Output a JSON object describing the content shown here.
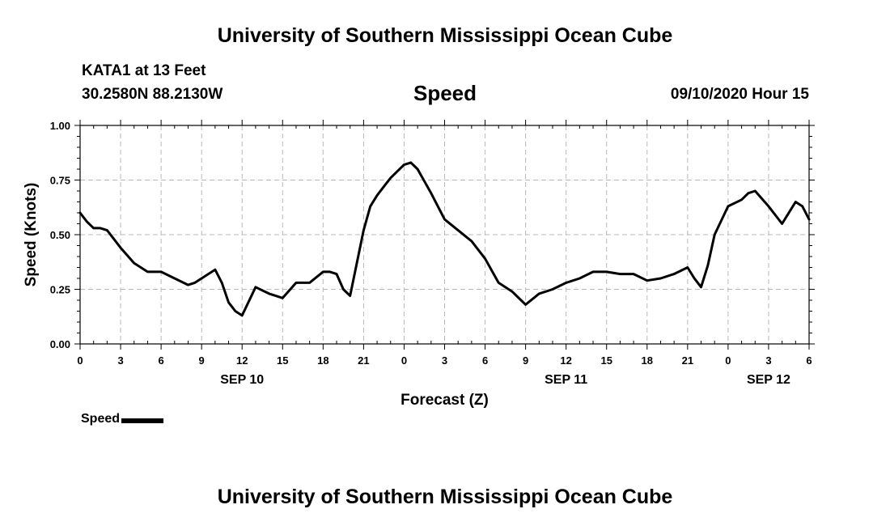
{
  "header": {
    "title": "University of Southern Mississippi Ocean Cube",
    "station": "KATA1 at 13 Feet",
    "coords": "30.2580N 88.2130W",
    "variable": "Speed",
    "timestamp": "09/10/2020 Hour 15"
  },
  "footer": {
    "title": "University of Southern Mississippi Ocean Cube"
  },
  "legend": {
    "label": "Speed"
  },
  "colors": {
    "line": "#000000",
    "grid": "#b8b8b8"
  },
  "chart_data": {
    "type": "line",
    "title": "Speed",
    "xlabel": "Forecast (Z)",
    "ylabel": "Speed (Knots)",
    "xlim": [
      0,
      54
    ],
    "ylim": [
      0,
      1
    ],
    "yticks": [
      {
        "v": 0,
        "label": "0.00"
      },
      {
        "v": 0.25,
        "label": "0.25"
      },
      {
        "v": 0.5,
        "label": "0.50"
      },
      {
        "v": 0.75,
        "label": "0.75"
      },
      {
        "v": 1,
        "label": "1.00"
      }
    ],
    "xticks": [
      {
        "v": 0,
        "label": "0"
      },
      {
        "v": 3,
        "label": "3"
      },
      {
        "v": 6,
        "label": "6"
      },
      {
        "v": 9,
        "label": "9"
      },
      {
        "v": 12,
        "label": "12"
      },
      {
        "v": 15,
        "label": "15"
      },
      {
        "v": 18,
        "label": "18"
      },
      {
        "v": 21,
        "label": "21"
      },
      {
        "v": 24,
        "label": "0"
      },
      {
        "v": 27,
        "label": "3"
      },
      {
        "v": 30,
        "label": "6"
      },
      {
        "v": 33,
        "label": "9"
      },
      {
        "v": 36,
        "label": "12"
      },
      {
        "v": 39,
        "label": "15"
      },
      {
        "v": 42,
        "label": "18"
      },
      {
        "v": 45,
        "label": "21"
      },
      {
        "v": 48,
        "label": "0"
      },
      {
        "v": 51,
        "label": "3"
      },
      {
        "v": 54,
        "label": "6"
      }
    ],
    "date_labels": [
      {
        "v": 12,
        "label": "SEP 10"
      },
      {
        "v": 36,
        "label": "SEP 11"
      },
      {
        "v": 51,
        "label": "SEP 12"
      }
    ],
    "grid": true,
    "series": [
      {
        "name": "Speed",
        "x": [
          0,
          0.5,
          1,
          1.5,
          2,
          3,
          4,
          4.5,
          5,
          5.5,
          6,
          7,
          8,
          8.5,
          9,
          10,
          10.5,
          11,
          11.5,
          12,
          13,
          14,
          14.5,
          15,
          16,
          17,
          18,
          18.5,
          19,
          19.5,
          20,
          21,
          21.5,
          22,
          22.5,
          23,
          24,
          24.5,
          25,
          26,
          27,
          28,
          29,
          30,
          31,
          32,
          33,
          34,
          35,
          36,
          37,
          38,
          39,
          40,
          41,
          42,
          43,
          44,
          45,
          45.5,
          46,
          46.5,
          47,
          48,
          49,
          49.5,
          50,
          51,
          52,
          53,
          53.5,
          54
        ],
        "y": [
          0.6,
          0.56,
          0.53,
          0.53,
          0.52,
          0.44,
          0.37,
          0.35,
          0.33,
          0.33,
          0.33,
          0.3,
          0.27,
          0.28,
          0.3,
          0.34,
          0.28,
          0.19,
          0.15,
          0.13,
          0.26,
          0.23,
          0.22,
          0.21,
          0.28,
          0.28,
          0.33,
          0.33,
          0.32,
          0.25,
          0.22,
          0.52,
          0.63,
          0.68,
          0.72,
          0.76,
          0.82,
          0.83,
          0.8,
          0.69,
          0.57,
          0.52,
          0.47,
          0.39,
          0.28,
          0.24,
          0.18,
          0.23,
          0.25,
          0.28,
          0.3,
          0.33,
          0.33,
          0.32,
          0.32,
          0.29,
          0.3,
          0.32,
          0.35,
          0.3,
          0.26,
          0.36,
          0.5,
          0.63,
          0.66,
          0.69,
          0.7,
          0.63,
          0.55,
          0.65,
          0.63,
          0.57
        ]
      }
    ]
  }
}
